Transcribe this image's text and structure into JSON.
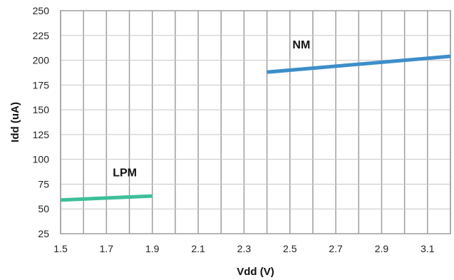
{
  "chart_data": {
    "type": "line",
    "title": "",
    "xlabel": "Vdd (V)",
    "ylabel": "Idd (uA)",
    "xlim": [
      1.5,
      3.2
    ],
    "ylim": [
      25,
      250
    ],
    "x_ticks": [
      "1.5",
      "1.7",
      "1.9",
      "2.1",
      "2.3",
      "2.5",
      "2.7",
      "2.9",
      "3.1"
    ],
    "y_ticks": [
      "25",
      "50",
      "75",
      "100",
      "125",
      "150",
      "175",
      "200",
      "225",
      "250"
    ],
    "grid": true,
    "legend": "none",
    "series": [
      {
        "name": "LPM",
        "color": "#3dbf9a",
        "x": [
          1.5,
          1.9
        ],
        "y": [
          59,
          63
        ]
      },
      {
        "name": "NM",
        "color": "#3d8ec9",
        "x": [
          2.4,
          3.2
        ],
        "y": [
          188,
          204
        ]
      }
    ]
  }
}
